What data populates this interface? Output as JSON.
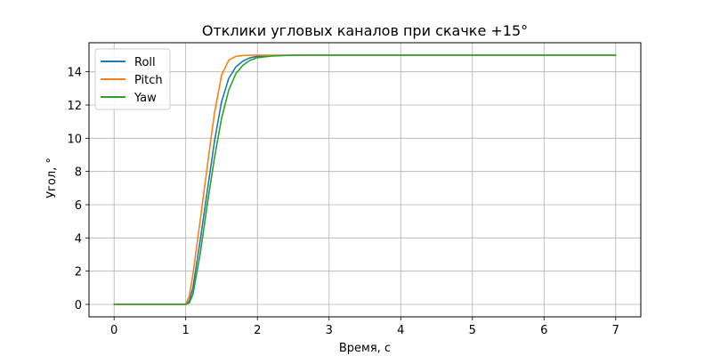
{
  "chart_data": {
    "type": "line",
    "title": "Отклики угловых каналов при скачке +15°",
    "xlabel": "Время, с",
    "ylabel": "Угол, °",
    "xlim": [
      -0.35,
      7.35
    ],
    "ylim": [
      -0.75,
      15.75
    ],
    "xticks": [
      0,
      1,
      2,
      3,
      4,
      5,
      6,
      7
    ],
    "yticks": [
      0,
      2,
      4,
      6,
      8,
      10,
      12,
      14
    ],
    "grid": true,
    "legend_position": "top-left",
    "series": [
      {
        "name": "Roll",
        "color": "#1f77b4",
        "x": [
          0,
          0.5,
          1.0,
          1.05,
          1.1,
          1.2,
          1.3,
          1.4,
          1.5,
          1.6,
          1.7,
          1.8,
          1.9,
          2.0,
          2.2,
          2.4,
          2.6,
          3.0,
          4.0,
          5.0,
          6.0,
          7.0
        ],
        "y": [
          0,
          0,
          0,
          0.2,
          1.0,
          3.8,
          6.8,
          9.8,
          12.2,
          13.6,
          14.3,
          14.65,
          14.85,
          14.93,
          14.98,
          15.0,
          15.0,
          15.0,
          15.0,
          15.0,
          15.0,
          15.0
        ]
      },
      {
        "name": "Pitch",
        "color": "#ff7f0e",
        "x": [
          0,
          0.5,
          1.0,
          1.05,
          1.1,
          1.2,
          1.3,
          1.4,
          1.5,
          1.6,
          1.7,
          1.8,
          1.9,
          2.0,
          2.2,
          2.4,
          2.6,
          3.0,
          4.0,
          5.0,
          6.0,
          7.0
        ],
        "y": [
          0,
          0,
          0,
          0.5,
          1.8,
          5.0,
          8.3,
          11.5,
          13.8,
          14.7,
          14.93,
          14.98,
          15.0,
          15.0,
          15.0,
          15.0,
          15.0,
          15.0,
          15.0,
          15.0,
          15.0,
          15.0
        ]
      },
      {
        "name": "Yaw",
        "color": "#2ca02c",
        "x": [
          0,
          0.5,
          1.0,
          1.05,
          1.1,
          1.2,
          1.3,
          1.4,
          1.5,
          1.6,
          1.7,
          1.8,
          1.9,
          2.0,
          2.2,
          2.4,
          2.6,
          3.0,
          4.0,
          5.0,
          6.0,
          7.0
        ],
        "y": [
          0,
          0,
          0,
          0.1,
          0.6,
          3.0,
          6.0,
          8.8,
          11.2,
          12.9,
          13.9,
          14.4,
          14.7,
          14.85,
          14.95,
          14.98,
          15.0,
          15.0,
          15.0,
          15.0,
          15.0,
          15.0
        ]
      }
    ]
  }
}
